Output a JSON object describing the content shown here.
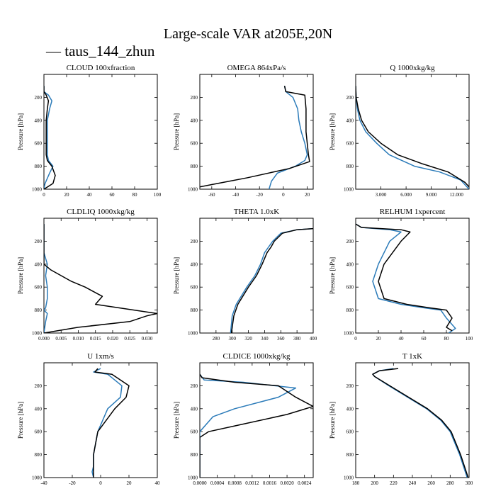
{
  "title": "Large-scale VAR at205E,20N",
  "legend": {
    "entries": [
      {
        "label": "— taus_144_zhun",
        "color": "#2b7bb9"
      }
    ]
  },
  "colors": {
    "series_1": "#2b7bb9",
    "series_2": "#000000"
  },
  "chart_data": [
    {
      "type": "line",
      "title": "CLOUD 100xfraction",
      "ylabel": "Pressure [hPa]",
      "xlim": [
        0,
        100
      ],
      "ylim": [
        1000,
        0
      ],
      "xticks": [
        0,
        20,
        40,
        60,
        80,
        100
      ],
      "xtick_labels": [
        "0",
        "20",
        "40",
        "60",
        "80",
        "100"
      ],
      "yticks": [
        200,
        400,
        600,
        800,
        1000
      ],
      "series": [
        {
          "color": "#2b7bb9",
          "x": [
            0,
            0,
            4,
            7,
            5,
            3,
            3,
            3,
            3,
            4,
            8,
            5,
            1,
            0
          ],
          "y": [
            100,
            150,
            180,
            230,
            300,
            400,
            500,
            600,
            700,
            750,
            800,
            860,
            950,
            1000
          ]
        },
        {
          "color": "#000000",
          "x": [
            0,
            0,
            2,
            4,
            3,
            2,
            2,
            2,
            2,
            3,
            7,
            10,
            8,
            0
          ],
          "y": [
            100,
            150,
            180,
            230,
            300,
            400,
            500,
            600,
            700,
            750,
            800,
            880,
            950,
            1000
          ]
        }
      ]
    },
    {
      "type": "line",
      "title": "OMEGA 864xPa/s",
      "ylabel": "Pressure [hPa]",
      "xlim": [
        -70,
        25
      ],
      "ylim": [
        1000,
        0
      ],
      "xticks": [
        -60,
        -40,
        -20,
        0,
        20
      ],
      "xtick_labels": [
        "-60",
        "-40",
        "-20",
        "0",
        "20"
      ],
      "yticks": [
        200,
        400,
        600,
        800,
        1000
      ],
      "series": [
        {
          "color": "#2b7bb9",
          "x": [
            1,
            2,
            8,
            12,
            13,
            15,
            18,
            20,
            18,
            10,
            -5,
            -10,
            -12
          ],
          "y": [
            100,
            150,
            200,
            300,
            400,
            500,
            600,
            700,
            750,
            800,
            860,
            930,
            1000
          ]
        },
        {
          "color": "#000000",
          "x": [
            1,
            2,
            18,
            19,
            19,
            19,
            20,
            21,
            22,
            5,
            -30,
            -60,
            -70
          ],
          "y": [
            100,
            150,
            180,
            300,
            400,
            500,
            600,
            700,
            760,
            820,
            900,
            960,
            980
          ]
        }
      ]
    },
    {
      "type": "line",
      "title": "Q 1000xkg/kg",
      "ylabel": "Pressure [hPa]",
      "xlim": [
        0,
        13.5
      ],
      "ylim": [
        1000,
        0
      ],
      "xticks": [
        3,
        6,
        9,
        12
      ],
      "xtick_labels": [
        "3.000",
        "6.000",
        "9.000",
        "12.000"
      ],
      "yticks": [
        200,
        400,
        600,
        800,
        1000
      ],
      "series": [
        {
          "color": "#2b7bb9",
          "x": [
            0,
            0.05,
            0.2,
            0.5,
            1.2,
            2.5,
            4,
            7,
            10,
            12.5,
            13.5
          ],
          "y": [
            100,
            200,
            300,
            400,
            500,
            600,
            700,
            800,
            850,
            920,
            1000
          ]
        },
        {
          "color": "#000000",
          "x": [
            0,
            0.05,
            0.3,
            0.7,
            1.5,
            3,
            5,
            8,
            11,
            13,
            13.5
          ],
          "y": [
            100,
            200,
            300,
            400,
            500,
            600,
            700,
            780,
            850,
            940,
            980
          ]
        }
      ]
    },
    {
      "type": "line",
      "title": "CLDLIQ 1000xkg/kg",
      "ylabel": "Pressure [hPa]",
      "xlim": [
        0,
        0.033
      ],
      "ylim": [
        1000,
        0
      ],
      "xticks": [
        0,
        0.005,
        0.01,
        0.015,
        0.02,
        0.025,
        0.03
      ],
      "xtick_labels": [
        "0.000",
        "0.005",
        "0.010",
        "0.015",
        "0.020",
        "0.025",
        "0.030"
      ],
      "yticks": [
        200,
        400,
        600,
        800,
        1000
      ],
      "series": [
        {
          "color": "#2b7bb9",
          "x": [
            0,
            0,
            0.001,
            0.0005,
            0.001,
            0.001,
            0.0005,
            0,
            0.001,
            0.0005,
            0
          ],
          "y": [
            50,
            300,
            400,
            500,
            600,
            700,
            780,
            800,
            830,
            900,
            1000
          ]
        },
        {
          "color": "#000000",
          "x": [
            0,
            0,
            0.002,
            0.008,
            0.012,
            0.017,
            0.015,
            0.033,
            0.03,
            0.025,
            0.01,
            0
          ],
          "y": [
            50,
            400,
            450,
            550,
            600,
            680,
            750,
            830,
            850,
            900,
            950,
            1000
          ]
        }
      ]
    },
    {
      "type": "line",
      "title": "THETA 1.0xK",
      "ylabel": "Pressure [hPa]",
      "xlim": [
        260,
        400
      ],
      "ylim": [
        1000,
        0
      ],
      "xticks": [
        280,
        300,
        320,
        340,
        360,
        380,
        400
      ],
      "xtick_labels": [
        "280",
        "300",
        "320",
        "340",
        "360",
        "380",
        "400"
      ],
      "yticks": [
        200,
        400,
        600,
        800,
        1000
      ],
      "series": [
        {
          "color": "#2b7bb9",
          "x": [
            400,
            380,
            360,
            350,
            345,
            340,
            335,
            328,
            318,
            305,
            300,
            298
          ],
          "y": [
            90,
            100,
            130,
            200,
            250,
            300,
            400,
            500,
            600,
            750,
            850,
            1000
          ]
        },
        {
          "color": "#000000",
          "x": [
            400,
            380,
            362,
            352,
            348,
            343,
            337,
            330,
            320,
            307,
            302,
            299
          ],
          "y": [
            90,
            100,
            130,
            200,
            250,
            300,
            400,
            500,
            600,
            750,
            850,
            1000
          ]
        }
      ]
    },
    {
      "type": "line",
      "title": "RELHUM 1xpercent",
      "ylabel": "Pressure [hPa]",
      "xlim": [
        0,
        100
      ],
      "ylim": [
        1000,
        0
      ],
      "xticks": [
        0,
        20,
        40,
        60,
        80,
        100
      ],
      "xtick_labels": [
        "0",
        "20",
        "40",
        "60",
        "80",
        "100"
      ],
      "yticks": [
        200,
        400,
        600,
        800,
        1000
      ],
      "series": [
        {
          "color": "#2b7bb9",
          "x": [
            0,
            5,
            30,
            40,
            30,
            20,
            15,
            20,
            40,
            60,
            75,
            80,
            88,
            82
          ],
          "y": [
            50,
            80,
            100,
            120,
            200,
            400,
            550,
            700,
            750,
            780,
            800,
            870,
            960,
            1000
          ]
        },
        {
          "color": "#000000",
          "x": [
            0,
            5,
            40,
            48,
            40,
            25,
            20,
            25,
            45,
            65,
            80,
            85,
            80,
            85
          ],
          "y": [
            50,
            80,
            100,
            120,
            200,
            400,
            550,
            700,
            750,
            780,
            800,
            870,
            950,
            980
          ]
        }
      ]
    },
    {
      "type": "line",
      "title": "U 1xm/s",
      "ylabel": "Pressure [hPa]",
      "xlim": [
        -40,
        40
      ],
      "ylim": [
        1000,
        0
      ],
      "xticks": [
        -40,
        -20,
        0,
        20,
        40
      ],
      "xtick_labels": [
        "-40",
        "-20",
        "0",
        "20",
        "40"
      ],
      "yticks": [
        200,
        400,
        600,
        800,
        1000
      ],
      "series": [
        {
          "color": "#2b7bb9",
          "x": [
            0,
            -5,
            5,
            15,
            14,
            5,
            -2,
            -5,
            -5,
            -6,
            -5
          ],
          "y": [
            50,
            80,
            100,
            200,
            300,
            400,
            600,
            800,
            900,
            950,
            1000
          ]
        },
        {
          "color": "#000000",
          "x": [
            -2,
            -4,
            8,
            20,
            18,
            10,
            -2,
            -5,
            -5,
            -5,
            -5
          ],
          "y": [
            50,
            80,
            100,
            200,
            300,
            400,
            600,
            800,
            900,
            950,
            1000
          ]
        }
      ]
    },
    {
      "type": "line",
      "title": "CLDICE 1000xkg/kg",
      "ylabel": "Pressure [hPa]",
      "xlim": [
        0,
        0.0026
      ],
      "ylim": [
        1000,
        0
      ],
      "xticks": [
        0,
        0.0004,
        0.0008,
        0.0012,
        0.0016,
        0.002,
        0.0024
      ],
      "xtick_labels": [
        "0.0000",
        "0.0004",
        "0.0008",
        "0.0012",
        "0.0016",
        "0.0020",
        "0.0024"
      ],
      "yticks": [
        200,
        400,
        600,
        800,
        1000
      ],
      "series": [
        {
          "color": "#2b7bb9",
          "x": [
            0,
            0.0001,
            0.001,
            0.0022,
            0.0018,
            0.0008,
            0.0003,
            0,
            0
          ],
          "y": [
            100,
            150,
            170,
            220,
            300,
            400,
            470,
            600,
            1000
          ]
        },
        {
          "color": "#000000",
          "x": [
            0,
            5e-05,
            0.0008,
            0.0018,
            0.0022,
            0.0026,
            0.002,
            0.0008,
            0.0002,
            0,
            0
          ],
          "y": [
            100,
            130,
            170,
            200,
            300,
            380,
            450,
            550,
            600,
            650,
            1000
          ]
        }
      ]
    },
    {
      "type": "line",
      "title": "T 1xK",
      "ylabel": "Pressure [hPa]",
      "xlim": [
        180,
        300
      ],
      "ylim": [
        1000,
        0
      ],
      "xticks": [
        180,
        200,
        220,
        240,
        260,
        280,
        300
      ],
      "xtick_labels": [
        "180",
        "200",
        "220",
        "240",
        "260",
        "280",
        "300"
      ],
      "yticks": [
        200,
        400,
        600,
        800,
        1000
      ],
      "series": [
        {
          "color": "#2b7bb9",
          "x": [
            220,
            205,
            198,
            200,
            215,
            235,
            255,
            270,
            280,
            290,
            298
          ],
          "y": [
            50,
            70,
            100,
            120,
            200,
            300,
            400,
            500,
            600,
            800,
            1000
          ]
        },
        {
          "color": "#000000",
          "x": [
            225,
            205,
            198,
            200,
            216,
            236,
            256,
            271,
            281,
            291,
            299
          ],
          "y": [
            50,
            70,
            100,
            120,
            200,
            300,
            400,
            500,
            600,
            800,
            1000
          ]
        }
      ]
    }
  ]
}
